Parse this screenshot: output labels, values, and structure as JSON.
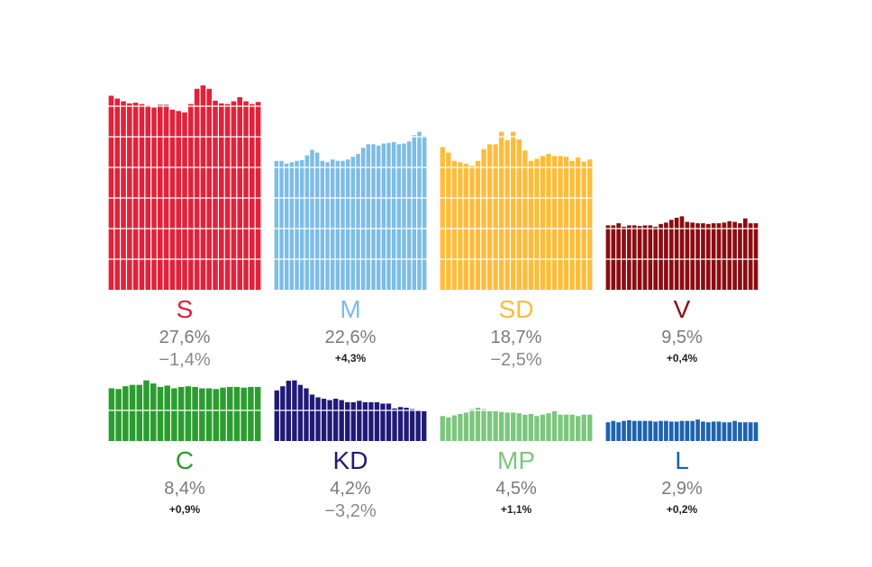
{
  "chart_data": [
    {
      "type": "bar",
      "party": "S",
      "share": "27,6%",
      "change": "−1,4%",
      "change_bold": false,
      "color": "#e0223a",
      "values": [
        28.0,
        27.6,
        27.2,
        26.9,
        27.0,
        26.8,
        26.6,
        26.3,
        26.7,
        26.7,
        26.0,
        25.8,
        25.6,
        26.8,
        29.0,
        29.5,
        29.0,
        27.3,
        26.9,
        26.8,
        27.2,
        27.8,
        27.2,
        26.8,
        27.1
      ]
    },
    {
      "type": "bar",
      "party": "M",
      "share": "22,6%",
      "change": "+4,3%",
      "change_bold": true,
      "color": "#7cbde6",
      "values": [
        18.6,
        18.6,
        18.2,
        18.4,
        18.6,
        18.7,
        19.4,
        20.2,
        19.8,
        18.6,
        18.4,
        18.8,
        18.6,
        18.6,
        18.8,
        19.2,
        19.6,
        20.5,
        21.0,
        21.0,
        20.8,
        21.1,
        21.2,
        21.3,
        21.0,
        21.1,
        21.4,
        22.3,
        22.8,
        22.2
      ]
    },
    {
      "type": "bar",
      "party": "SD",
      "share": "18,7%",
      "change": "−2,5%",
      "change_bold": false,
      "color": "#fdbd3a",
      "values": [
        20.6,
        19.8,
        18.6,
        18.4,
        18.2,
        17.9,
        18.6,
        20.3,
        21.0,
        21.0,
        22.8,
        21.6,
        22.8,
        21.7,
        20.1,
        18.6,
        18.9,
        19.3,
        19.6,
        19.3,
        19.3,
        19.2,
        18.6,
        19.1,
        18.5,
        18.8
      ]
    },
    {
      "type": "bar",
      "party": "V",
      "share": "9,5%",
      "change": "+0,4%",
      "change_bold": true,
      "color": "#8b0c12",
      "values": [
        9.3,
        9.3,
        9.6,
        9.1,
        9.3,
        9.3,
        9.2,
        9.3,
        9.3,
        9.1,
        9.5,
        9.7,
        10.1,
        10.4,
        10.6,
        9.8,
        9.7,
        9.6,
        9.6,
        9.5,
        9.6,
        9.6,
        9.7,
        9.9,
        9.8,
        9.6,
        10.3,
        9.6,
        9.6
      ]
    },
    {
      "type": "bar",
      "party": "C",
      "share": "8,4%",
      "change": "+0,9%",
      "change_bold": true,
      "color": "#2b9d2f",
      "values": [
        7.6,
        7.5,
        7.9,
        8.1,
        8.1,
        8.8,
        8.3,
        7.8,
        8.0,
        7.6,
        7.8,
        7.9,
        7.8,
        7.6,
        7.6,
        7.5,
        7.7,
        7.8,
        7.8,
        7.7,
        7.8,
        7.8
      ]
    },
    {
      "type": "bar",
      "party": "KD",
      "share": "4,2%",
      "change": "−3,2%",
      "change_bold": false,
      "color": "#201a77",
      "values": [
        7.3,
        7.9,
        8.7,
        8.8,
        8.1,
        7.6,
        6.7,
        6.3,
        6.1,
        5.9,
        6.1,
        5.9,
        5.6,
        5.6,
        5.8,
        5.6,
        5.6,
        5.6,
        5.4,
        5.4,
        4.7,
        4.9,
        4.8,
        4.6,
        4.4,
        4.3
      ]
    },
    {
      "type": "bar",
      "party": "MP",
      "share": "4,5%",
      "change": "+1,1%",
      "change_bold": true,
      "color": "#7cc67e",
      "values": [
        3.6,
        3.4,
        3.7,
        3.9,
        4.1,
        4.6,
        4.8,
        4.6,
        4.3,
        4.3,
        4.2,
        4.1,
        4.1,
        4.0,
        3.8,
        3.9,
        3.6,
        3.8,
        4.0,
        4.3,
        3.8,
        3.8,
        3.8,
        3.6,
        3.8,
        3.8
      ]
    },
    {
      "type": "bar",
      "party": "L",
      "share": "2,9%",
      "change": "+0,2%",
      "change_bold": true,
      "color": "#1d63b0",
      "values": [
        2.7,
        2.9,
        2.7,
        2.9,
        3.0,
        2.9,
        2.9,
        2.9,
        2.9,
        2.8,
        2.9,
        2.9,
        2.8,
        2.8,
        2.9,
        2.9,
        2.9,
        3.1,
        2.8,
        2.7,
        2.8,
        2.8,
        2.7,
        2.7,
        2.9,
        2.7,
        2.7,
        2.7,
        2.7
      ]
    }
  ]
}
